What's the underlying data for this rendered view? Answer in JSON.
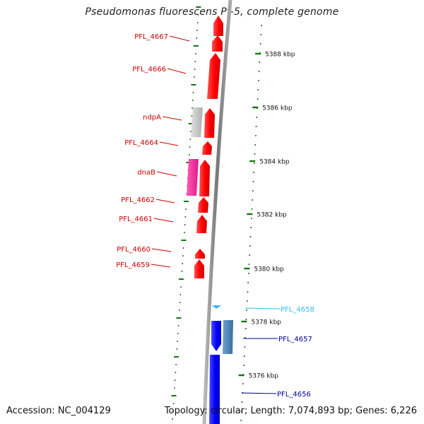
{
  "title": "Pseudomonas fluorescens Pf-5, complete genome",
  "footer": {
    "accession": "Accession: NC_004129",
    "summary": "Topology: circular; Length: 7,074,893 bp; Genes: 6,226"
  },
  "scale": {
    "unit": "kbp",
    "ticks": [
      "5388 kbp",
      "5386 kbp",
      "5384 kbp",
      "5382 kbp",
      "5380 kbp",
      "5378 kbp",
      "5376 kbp"
    ]
  },
  "genes_reverse": [
    {
      "label": "PFL_4667"
    },
    {
      "label": "PFL_4666"
    },
    {
      "label": "ndpA"
    },
    {
      "label": "PFL_4664"
    },
    {
      "label": "dnaB"
    },
    {
      "label": "PFL_4662"
    },
    {
      "label": "PFL_4661"
    },
    {
      "label": "PFL_4660"
    },
    {
      "label": "PFL_4659"
    }
  ],
  "genes_forward": [
    {
      "label": "PFL_4658"
    },
    {
      "label": "PFL_4657"
    },
    {
      "label": "PFL_4656"
    }
  ],
  "colors": {
    "reverse_strand_cds": "#ff0000",
    "forward_strand_cds": "#0000ff",
    "rna_gene": "#c8c8c8",
    "pink_gene": "#ff2a9a",
    "steelblue_gene": "#4f86b9",
    "light_blue_gene": "#33bbee",
    "label_red": "#cc0000",
    "label_navy": "#000099",
    "label_cyan": "#33bbee",
    "tick_green": "#117711",
    "backbone": "#888888"
  }
}
